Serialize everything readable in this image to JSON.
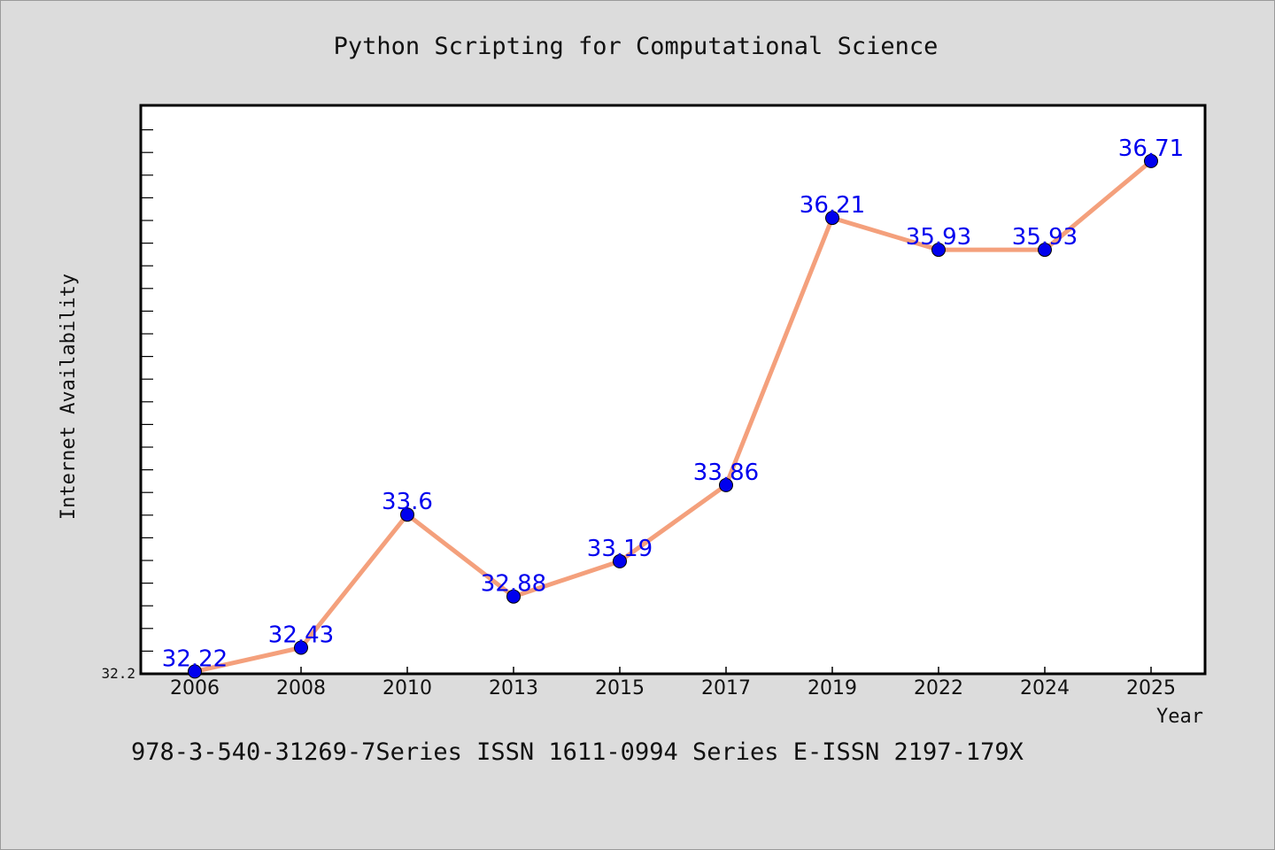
{
  "chart_data": {
    "type": "line",
    "title": "Python Scripting for Computational Science",
    "xlabel": "Year",
    "ylabel": "Internet Availability",
    "categories": [
      "2006",
      "2008",
      "2010",
      "2013",
      "2015",
      "2017",
      "2019",
      "2022",
      "2024",
      "2025"
    ],
    "values": [
      32.22,
      32.43,
      33.6,
      32.88,
      33.19,
      33.86,
      36.21,
      35.93,
      35.93,
      36.71
    ],
    "data_labels": [
      "32.22",
      "32.43",
      "33.6",
      "32.88",
      "33.19",
      "33.86",
      "36.21",
      "35.93",
      "35.93",
      "36.71"
    ],
    "ytick_labels": [
      "32.2"
    ],
    "ylim": [
      32.2,
      37.2
    ],
    "grid": false,
    "legend": "none",
    "line_color": "#f4a07c",
    "marker_color": "#0000ee",
    "label_color": "#0000ee"
  },
  "footer": {
    "note": "978-3-540-31269-7Series ISSN 1611-0994 Series E-ISSN 2197-179X"
  }
}
